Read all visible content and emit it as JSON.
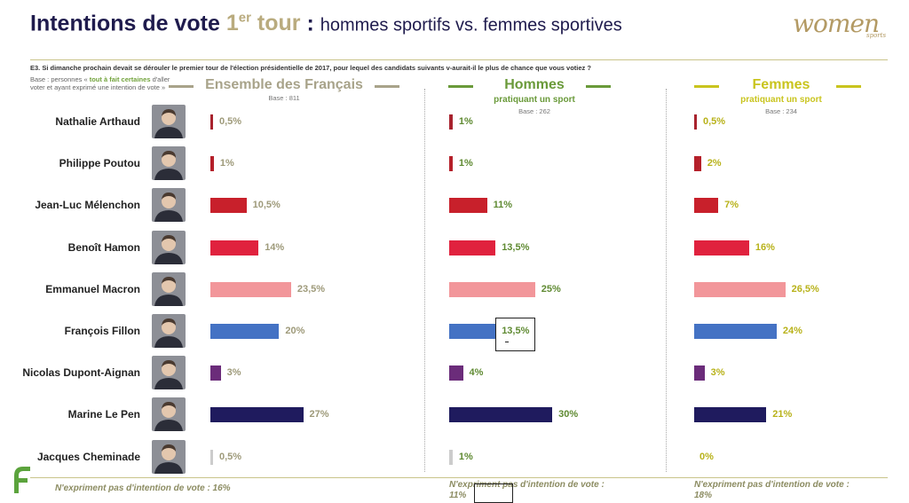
{
  "header": {
    "title_main": "Intentions de vote ",
    "title_round": "1",
    "title_round_sup": "er",
    "title_round_word": " tour",
    "title_colon": " : ",
    "title_rest": "hommes sportifs vs. femmes sportives",
    "logo_main": "women",
    "logo_sub": "sports"
  },
  "question": "E3. Si dimanche prochain devait se dérouler le premier tour de l'élection présidentielle de 2017, pour lequel des candidats suivants v-aurait-il le plus de chance que vous votiez ?",
  "base_note": {
    "prefix": "Base : personnes « ",
    "highlight": "tout à fait certaines",
    "suffix": " d'aller voter et ayant exprimé une intention de vote »"
  },
  "colors": {
    "Nathalie Arthaud": "#a8232e",
    "Philippe Poutou": "#b5202a",
    "Jean-Luc Mélenchon": "#c8202b",
    "Benoît Hamon": "#e0223e",
    "Emmanuel Macron": "#f2969a",
    "François Fillon": "#4472c4",
    "Nicolas Dupont-Aignan": "#6b2c7a",
    "Marine Le Pen": "#1f1b5e",
    "Jacques Cheminade": "#cccccc"
  },
  "chart_data": {
    "type": "bar",
    "orientation": "horizontal",
    "categories": [
      "Nathalie Arthaud",
      "Philippe Poutou",
      "Jean-Luc Mélenchon",
      "Benoît Hamon",
      "Emmanuel Macron",
      "François Fillon",
      "Nicolas Dupont-Aignan",
      "Marine Le Pen",
      "Jacques Cheminade"
    ],
    "series": [
      {
        "name": "Ensemble des Français",
        "subtitle": "",
        "base": "Base : 811",
        "header_color": "#a8a38a",
        "label_color": "#9e9a7a",
        "values": [
          0.5,
          1,
          10.5,
          14,
          23.5,
          20,
          3,
          27,
          0.5
        ],
        "labels": [
          "0,5%",
          "1%",
          "10,5%",
          "14%",
          "23,5%",
          "20%",
          "3%",
          "27%",
          "0,5%"
        ],
        "no_intention": "N'expriment pas d'intention de vote : 16%"
      },
      {
        "name": "Hommes",
        "subtitle": "pratiquant un sport",
        "base": "Base : 262",
        "header_color": "#6a9a3a",
        "label_color": "#5f8a32",
        "values": [
          1,
          1,
          11,
          13.5,
          25,
          13.5,
          4,
          30,
          1
        ],
        "labels": [
          "1%",
          "1%",
          "11%",
          "13,5%",
          "25%",
          "13,5%",
          "4%",
          "30%",
          "1%"
        ],
        "no_intention": "N'expriment pas d'intention de vote : 11%"
      },
      {
        "name": "Femmes",
        "subtitle": "pratiquant un sport",
        "base": "Base : 234",
        "header_color": "#c9c41e",
        "label_color": "#b8b21a",
        "values": [
          0.5,
          2,
          7,
          16,
          26.5,
          24,
          3,
          21,
          0
        ],
        "labels": [
          "0,5%",
          "2%",
          "7%",
          "16%",
          "26,5%",
          "24%",
          "3%",
          "21%",
          "0%"
        ],
        "no_intention": "N'expriment pas d'intention de vote : 18%"
      }
    ],
    "grid": false
  }
}
